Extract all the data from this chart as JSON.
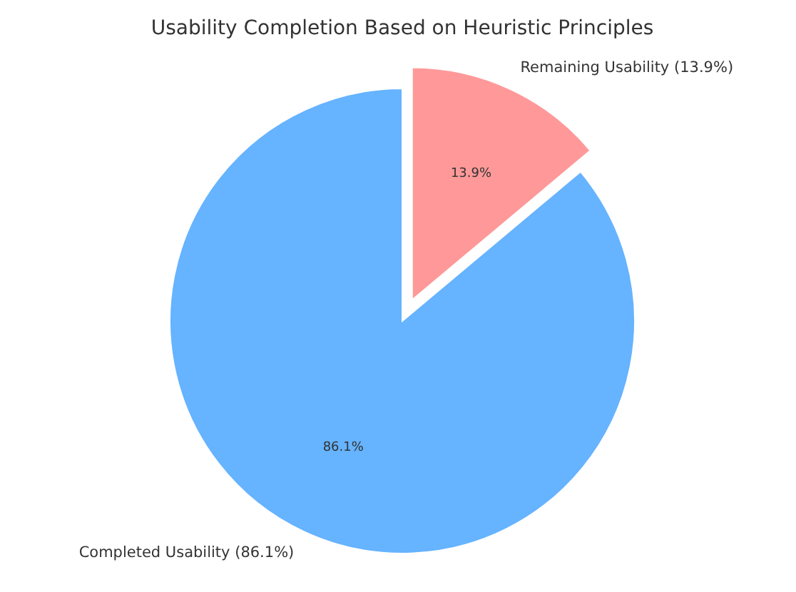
{
  "chart_data": {
    "type": "pie",
    "title": "Usability Completion Based on Heuristic Principles",
    "categories": [
      "Completed Usability (86.1%)",
      "Remaining Usability (13.9%)"
    ],
    "values": [
      86.1,
      13.9
    ],
    "colors": [
      "#66b3ff",
      "#ff9999"
    ],
    "value_labels": [
      "86.1%",
      "13.9%"
    ]
  }
}
